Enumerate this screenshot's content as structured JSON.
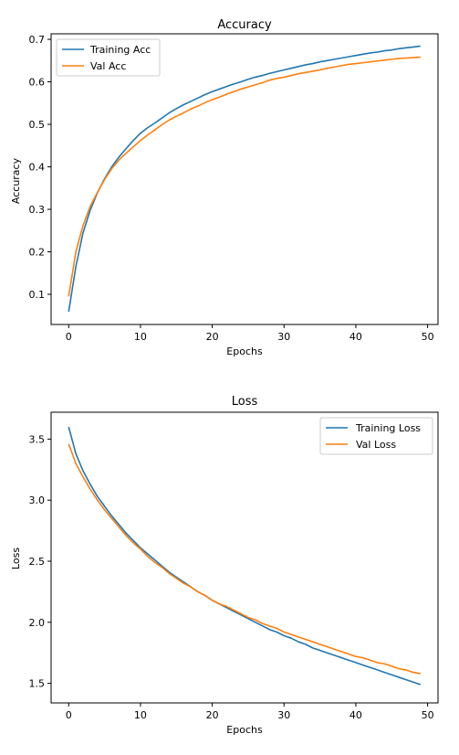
{
  "chart_data": [
    {
      "type": "line",
      "title": "Accuracy",
      "xlabel": "Epochs",
      "ylabel": "Accuracy",
      "xlim": [
        -2.45,
        51.45
      ],
      "ylim": [
        0.029,
        0.713
      ],
      "xticks": [
        0,
        10,
        20,
        30,
        40,
        50
      ],
      "yticks": [
        0.1,
        0.2,
        0.3,
        0.4,
        0.5,
        0.6,
        0.7
      ],
      "ytick_labels": [
        "0.1",
        "0.2",
        "0.3",
        "0.4",
        "0.5",
        "0.6",
        "0.7"
      ],
      "grid": false,
      "legend_position": "upper-left",
      "x": [
        0,
        1,
        2,
        3,
        4,
        5,
        6,
        7,
        8,
        9,
        10,
        11,
        12,
        13,
        14,
        15,
        16,
        17,
        18,
        19,
        20,
        21,
        22,
        23,
        24,
        25,
        26,
        27,
        28,
        29,
        30,
        31,
        32,
        33,
        34,
        35,
        36,
        37,
        38,
        39,
        40,
        41,
        42,
        43,
        44,
        45,
        46,
        47,
        48,
        49
      ],
      "series": [
        {
          "name": "Training Acc",
          "color": "#1f77b4",
          "values": [
            0.059,
            0.165,
            0.245,
            0.298,
            0.339,
            0.372,
            0.4,
            0.423,
            0.443,
            0.462,
            0.479,
            0.492,
            0.503,
            0.515,
            0.527,
            0.537,
            0.546,
            0.554,
            0.562,
            0.57,
            0.577,
            0.583,
            0.589,
            0.595,
            0.6,
            0.606,
            0.611,
            0.615,
            0.62,
            0.624,
            0.628,
            0.632,
            0.636,
            0.64,
            0.643,
            0.647,
            0.65,
            0.653,
            0.656,
            0.659,
            0.662,
            0.665,
            0.668,
            0.67,
            0.673,
            0.675,
            0.678,
            0.68,
            0.682,
            0.684
          ]
        },
        {
          "name": "Val Acc",
          "color": "#ff7f0e",
          "values": [
            0.095,
            0.2,
            0.262,
            0.307,
            0.34,
            0.37,
            0.396,
            0.416,
            0.432,
            0.447,
            0.462,
            0.475,
            0.487,
            0.499,
            0.51,
            0.519,
            0.527,
            0.536,
            0.543,
            0.551,
            0.558,
            0.564,
            0.571,
            0.577,
            0.583,
            0.588,
            0.593,
            0.598,
            0.604,
            0.608,
            0.611,
            0.615,
            0.619,
            0.622,
            0.625,
            0.628,
            0.632,
            0.635,
            0.638,
            0.641,
            0.643,
            0.645,
            0.647,
            0.649,
            0.651,
            0.653,
            0.655,
            0.656,
            0.657,
            0.658
          ]
        }
      ]
    },
    {
      "type": "line",
      "title": "Loss",
      "xlabel": "Epochs",
      "ylabel": "Loss",
      "xlim": [
        -2.45,
        51.45
      ],
      "ylim": [
        1.34,
        3.72
      ],
      "xticks": [
        0,
        10,
        20,
        30,
        40,
        50
      ],
      "yticks": [
        1.5,
        2.0,
        2.5,
        3.0,
        3.5
      ],
      "ytick_labels": [
        "1.5",
        "2.0",
        "2.5",
        "3.0",
        "3.5"
      ],
      "grid": false,
      "legend_position": "upper-right",
      "x": [
        0,
        1,
        2,
        3,
        4,
        5,
        6,
        7,
        8,
        9,
        10,
        11,
        12,
        13,
        14,
        15,
        16,
        17,
        18,
        19,
        20,
        21,
        22,
        23,
        24,
        25,
        26,
        27,
        28,
        29,
        30,
        31,
        32,
        33,
        34,
        35,
        36,
        37,
        38,
        39,
        40,
        41,
        42,
        43,
        44,
        45,
        46,
        47,
        48,
        49
      ],
      "series": [
        {
          "name": "Training Loss",
          "color": "#1f77b4",
          "values": [
            3.6,
            3.38,
            3.24,
            3.13,
            3.03,
            2.95,
            2.87,
            2.8,
            2.73,
            2.67,
            2.61,
            2.56,
            2.51,
            2.46,
            2.41,
            2.37,
            2.33,
            2.29,
            2.25,
            2.22,
            2.18,
            2.15,
            2.12,
            2.09,
            2.06,
            2.03,
            2.0,
            1.97,
            1.94,
            1.92,
            1.89,
            1.87,
            1.84,
            1.82,
            1.79,
            1.77,
            1.75,
            1.73,
            1.71,
            1.69,
            1.67,
            1.65,
            1.63,
            1.61,
            1.59,
            1.57,
            1.55,
            1.53,
            1.51,
            1.49
          ]
        },
        {
          "name": "Val Loss",
          "color": "#ff7f0e",
          "values": [
            3.46,
            3.3,
            3.19,
            3.09,
            3.0,
            2.92,
            2.85,
            2.78,
            2.71,
            2.65,
            2.6,
            2.54,
            2.49,
            2.45,
            2.4,
            2.36,
            2.32,
            2.29,
            2.25,
            2.22,
            2.18,
            2.15,
            2.13,
            2.1,
            2.07,
            2.04,
            2.02,
            1.99,
            1.97,
            1.95,
            1.92,
            1.9,
            1.88,
            1.86,
            1.84,
            1.82,
            1.8,
            1.78,
            1.76,
            1.74,
            1.72,
            1.71,
            1.69,
            1.67,
            1.66,
            1.64,
            1.62,
            1.61,
            1.59,
            1.58
          ]
        }
      ]
    }
  ]
}
